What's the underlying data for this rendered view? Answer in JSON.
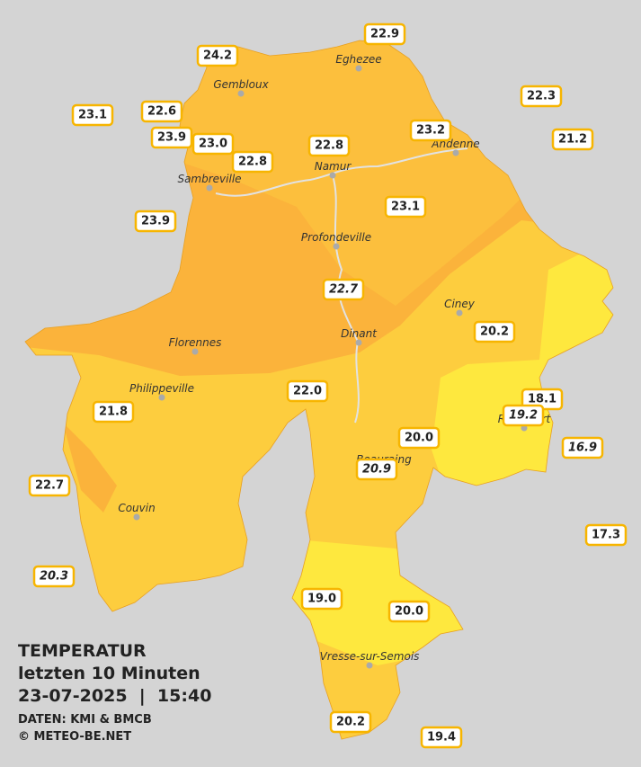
{
  "legend": {
    "title": "TEMPERATUR",
    "period": "letzten 10 Minuten",
    "timestamp": "23-07-2025  |  15:40",
    "source": "DATEN: KMI & BMCB",
    "copyright": "© METEO-BE.NET"
  },
  "towns": [
    "Eghezee",
    "Gembloux",
    "Andenne",
    "Namur",
    "Sambreville",
    "Profondeville",
    "Ciney",
    "Dinant",
    "Florennes",
    "Philippeville",
    "Rochefort",
    "Beauraing",
    "Couvin",
    "Vresse-sur-Semois"
  ],
  "stations": [
    {
      "label": "24.2",
      "style": "normal"
    },
    {
      "label": "22.9",
      "style": "normal"
    },
    {
      "label": "22.3",
      "style": "normal"
    },
    {
      "label": "23.1",
      "style": "normal"
    },
    {
      "label": "22.6",
      "style": "normal"
    },
    {
      "label": "23.9",
      "style": "normal"
    },
    {
      "label": "23.0",
      "style": "normal"
    },
    {
      "label": "22.8",
      "style": "normal"
    },
    {
      "label": "22.8",
      "style": "normal"
    },
    {
      "label": "23.2",
      "style": "normal"
    },
    {
      "label": "21.2",
      "style": "normal"
    },
    {
      "label": "23.1",
      "style": "normal"
    },
    {
      "label": "23.9",
      "style": "normal"
    },
    {
      "label": "22.7",
      "style": "italic"
    },
    {
      "label": "20.2",
      "style": "normal"
    },
    {
      "label": "22.0",
      "style": "normal"
    },
    {
      "label": "18.1",
      "style": "normal"
    },
    {
      "label": "19.2",
      "style": "italic"
    },
    {
      "label": "21.8",
      "style": "normal"
    },
    {
      "label": "20.0",
      "style": "normal"
    },
    {
      "label": "20.9",
      "style": "italic"
    },
    {
      "label": "16.9",
      "style": "italic"
    },
    {
      "label": "22.7",
      "style": "normal"
    },
    {
      "label": "17.3",
      "style": "normal"
    },
    {
      "label": "20.3",
      "style": "italic"
    },
    {
      "label": "19.0",
      "style": "normal"
    },
    {
      "label": "20.0",
      "style": "normal"
    },
    {
      "label": "20.2",
      "style": "normal"
    },
    {
      "label": "19.4",
      "style": "normal"
    }
  ]
}
